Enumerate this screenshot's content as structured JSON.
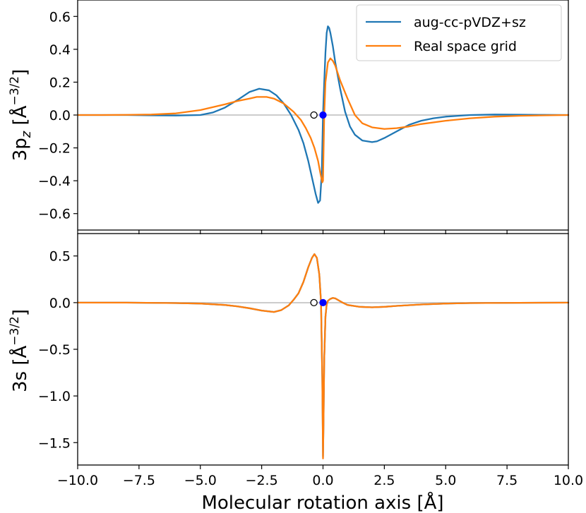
{
  "chart_data": [
    {
      "type": "line",
      "panel": "top",
      "ylabel_main": "3p",
      "ylabel_sub": "z",
      "ylabel_unit": "Å",
      "ylabel_exp": "−3/2",
      "xlim": [
        -10,
        10
      ],
      "ylim": [
        -0.7,
        0.7
      ],
      "yticks": [
        -0.6,
        -0.4,
        -0.2,
        0.0,
        0.2,
        0.4,
        0.6
      ],
      "ytick_labels": [
        "−0.6",
        "−0.4",
        "−0.2",
        "0.0",
        "0.2",
        "0.4",
        "0.6"
      ],
      "grid": false,
      "legend_position": "top-right",
      "legend": [
        "aug-cc-pVDZ+sz",
        "Real space grid"
      ],
      "series": [
        {
          "name": "aug-cc-pVDZ+sz",
          "color": "#1f77b4",
          "x": [
            -10,
            -9,
            -8,
            -7,
            -6,
            -5,
            -4.5,
            -4,
            -3.5,
            -3,
            -2.6,
            -2.2,
            -1.9,
            -1.6,
            -1.3,
            -1.0,
            -0.8,
            -0.6,
            -0.45,
            -0.3,
            -0.2,
            -0.12,
            -0.05,
            0.0,
            0.05,
            0.1,
            0.15,
            0.2,
            0.25,
            0.3,
            0.4,
            0.5,
            0.7,
            0.9,
            1.1,
            1.3,
            1.6,
            2.0,
            2.2,
            2.5,
            3.0,
            3.5,
            4.0,
            4.5,
            5.0,
            5.5,
            6.0,
            7.0,
            8.0,
            9.0,
            10.0
          ],
          "y": [
            0.0,
            0.0,
            0.0,
            -0.002,
            -0.003,
            0.0,
            0.015,
            0.045,
            0.09,
            0.14,
            0.16,
            0.15,
            0.12,
            0.07,
            0.0,
            -0.09,
            -0.17,
            -0.28,
            -0.38,
            -0.48,
            -0.535,
            -0.52,
            -0.35,
            0.0,
            0.2,
            0.38,
            0.5,
            0.54,
            0.53,
            0.5,
            0.42,
            0.32,
            0.16,
            0.02,
            -0.07,
            -0.12,
            -0.155,
            -0.165,
            -0.16,
            -0.14,
            -0.1,
            -0.06,
            -0.035,
            -0.02,
            -0.01,
            -0.005,
            0.0,
            0.003,
            0.002,
            0.001,
            0.0
          ]
        },
        {
          "name": "Real space grid",
          "color": "#ff7f0e",
          "x": [
            -10,
            -9,
            -8,
            -7,
            -6,
            -5,
            -4,
            -3.5,
            -3,
            -2.7,
            -2.3,
            -2.0,
            -1.6,
            -1.2,
            -0.9,
            -0.7,
            -0.5,
            -0.35,
            -0.2,
            -0.1,
            -0.03,
            0.0,
            0.05,
            0.1,
            0.2,
            0.3,
            0.4,
            0.5,
            0.7,
            1.0,
            1.3,
            1.6,
            2.0,
            2.5,
            3.0,
            3.5,
            4.0,
            5.0,
            6.0,
            7.0,
            8.0,
            9.0,
            10.0
          ],
          "y": [
            0.0,
            0.0,
            0.001,
            0.003,
            0.01,
            0.03,
            0.065,
            0.085,
            0.1,
            0.11,
            0.11,
            0.1,
            0.07,
            0.02,
            -0.03,
            -0.08,
            -0.14,
            -0.2,
            -0.28,
            -0.36,
            -0.41,
            -0.4,
            0.0,
            0.2,
            0.32,
            0.345,
            0.33,
            0.3,
            0.21,
            0.1,
            0.0,
            -0.05,
            -0.075,
            -0.085,
            -0.08,
            -0.07,
            -0.055,
            -0.035,
            -0.02,
            -0.01,
            -0.005,
            -0.002,
            0.0
          ]
        }
      ],
      "markers": [
        {
          "name": "open-circle",
          "x": -0.37,
          "y": 0.0,
          "fill": "#ffffff",
          "stroke": "#000000"
        },
        {
          "name": "filled-circle",
          "x": 0.0,
          "y": 0.0,
          "fill": "#0000ff",
          "stroke": "#0000ff"
        }
      ]
    },
    {
      "type": "line",
      "panel": "bottom",
      "ylabel_main": "3s",
      "ylabel_unit": "Å",
      "ylabel_exp": "−3/2",
      "xlabel": "Molecular rotation axis [Å]",
      "xlim": [
        -10,
        10
      ],
      "ylim": [
        -1.74,
        0.74
      ],
      "xticks": [
        -10,
        -7.5,
        -5,
        -2.5,
        0,
        2.5,
        5,
        7.5,
        10
      ],
      "xtick_labels": [
        "−10.0",
        "−7.5",
        "−5.0",
        "−2.5",
        "0.0",
        "2.5",
        "5.0",
        "7.5",
        "10.0"
      ],
      "yticks": [
        -1.5,
        -1.0,
        -0.5,
        0.0,
        0.5
      ],
      "ytick_labels": [
        "−1.5",
        "−1.0",
        "−0.5",
        "0.0",
        "0.5"
      ],
      "grid": false,
      "series": [
        {
          "name": "aug-cc-pVDZ+sz",
          "color": "#1f77b4",
          "x": [
            -10,
            -8,
            -6,
            -5,
            -4,
            -3.5,
            -3,
            -2.5,
            -2.0,
            -1.7,
            -1.4,
            -1.2,
            -1.0,
            -0.8,
            -0.6,
            -0.45,
            -0.35,
            -0.25,
            -0.15,
            -0.08,
            -0.03,
            0.0,
            0.02,
            0.05,
            0.1,
            0.15,
            0.2,
            0.3,
            0.4,
            0.5,
            0.6,
            0.8,
            1.0,
            1.5,
            2.0,
            2.5,
            3.0,
            4.0,
            5.0,
            6.0,
            8.0,
            10.0
          ],
          "y": [
            0.0,
            0.0,
            -0.005,
            -0.01,
            -0.025,
            -0.04,
            -0.06,
            -0.085,
            -0.1,
            -0.08,
            -0.03,
            0.03,
            0.1,
            0.22,
            0.38,
            0.48,
            0.52,
            0.48,
            0.3,
            0.0,
            -0.8,
            -1.65,
            -1.3,
            -0.6,
            -0.15,
            -0.02,
            0.02,
            0.04,
            0.05,
            0.045,
            0.03,
            0.0,
            -0.025,
            -0.045,
            -0.05,
            -0.045,
            -0.035,
            -0.02,
            -0.01,
            -0.005,
            -0.002,
            0.0
          ]
        },
        {
          "name": "Real space grid",
          "color": "#ff7f0e",
          "x": [
            -10,
            -8,
            -6,
            -5,
            -4,
            -3.5,
            -3,
            -2.5,
            -2.0,
            -1.7,
            -1.4,
            -1.2,
            -1.0,
            -0.8,
            -0.6,
            -0.45,
            -0.35,
            -0.25,
            -0.15,
            -0.08,
            -0.03,
            0.0,
            0.02,
            0.05,
            0.1,
            0.15,
            0.2,
            0.3,
            0.4,
            0.5,
            0.6,
            0.8,
            1.0,
            1.5,
            2.0,
            2.5,
            3.0,
            4.0,
            5.0,
            6.0,
            8.0,
            10.0
          ],
          "y": [
            0.0,
            0.0,
            -0.005,
            -0.01,
            -0.025,
            -0.04,
            -0.06,
            -0.085,
            -0.1,
            -0.08,
            -0.03,
            0.03,
            0.1,
            0.22,
            0.38,
            0.48,
            0.52,
            0.48,
            0.3,
            0.0,
            -0.8,
            -1.67,
            -1.3,
            -0.6,
            -0.15,
            -0.02,
            0.02,
            0.04,
            0.05,
            0.045,
            0.03,
            0.0,
            -0.025,
            -0.045,
            -0.05,
            -0.045,
            -0.035,
            -0.02,
            -0.01,
            -0.005,
            -0.002,
            0.0
          ]
        }
      ],
      "markers": [
        {
          "name": "open-circle",
          "x": -0.37,
          "y": 0.0,
          "fill": "#ffffff",
          "stroke": "#000000"
        },
        {
          "name": "filled-circle",
          "x": 0.0,
          "y": 0.0,
          "fill": "#0000ff",
          "stroke": "#0000ff"
        }
      ]
    }
  ]
}
